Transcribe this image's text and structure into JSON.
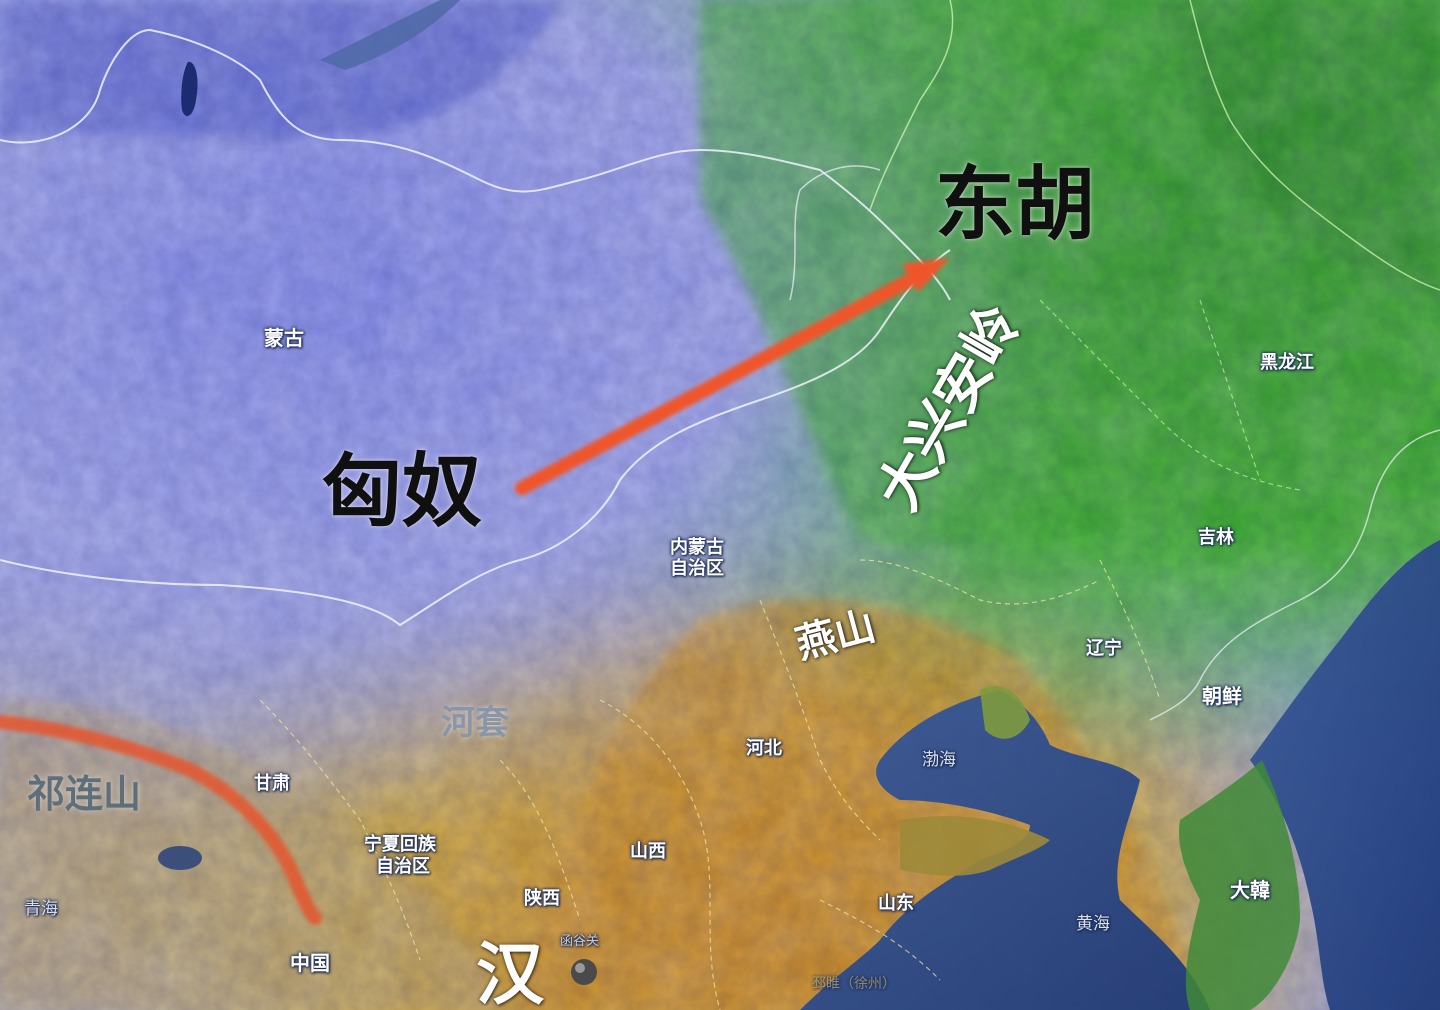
{
  "map": {
    "title_labels": {
      "xiongnu": "匈奴",
      "donghu": "东胡",
      "han": "汉"
    },
    "mountain_labels": {
      "daxinganling": "大兴安岭",
      "yanshan": "燕山",
      "qilianshan": "祁连山"
    },
    "region_labels": {
      "hetao": "河套",
      "mongolia": "蒙古",
      "inner_mongolia_1": "内蒙古",
      "inner_mongolia_2": "自治区",
      "heilongjiang": "黑龙江",
      "jilin": "吉林",
      "liaoning": "辽宁",
      "chaoxian": "朝鲜",
      "dahan": "大韓",
      "hebei": "河北",
      "shanxi": "山西",
      "shaanxi": "陕西",
      "shandong": "山东",
      "gansu": "甘肃",
      "qinghai": "青海",
      "ningxia_1": "宁夏回族",
      "ningxia_2": "自治区",
      "china": "中国",
      "bohai": "渤海",
      "huanghai": "黄海",
      "hanguguan": "函谷关",
      "xuzhou": "邳睢（徐州）"
    },
    "colors": {
      "arrow": "#f0552a",
      "qilian_line": "#e5552e",
      "xiongnu_zone": "#6f78e0",
      "donghu_zone": "#3cae2c",
      "han_zone": "#d9a12a",
      "sea": "#2b4a8a",
      "border": "#e8eef6"
    }
  }
}
